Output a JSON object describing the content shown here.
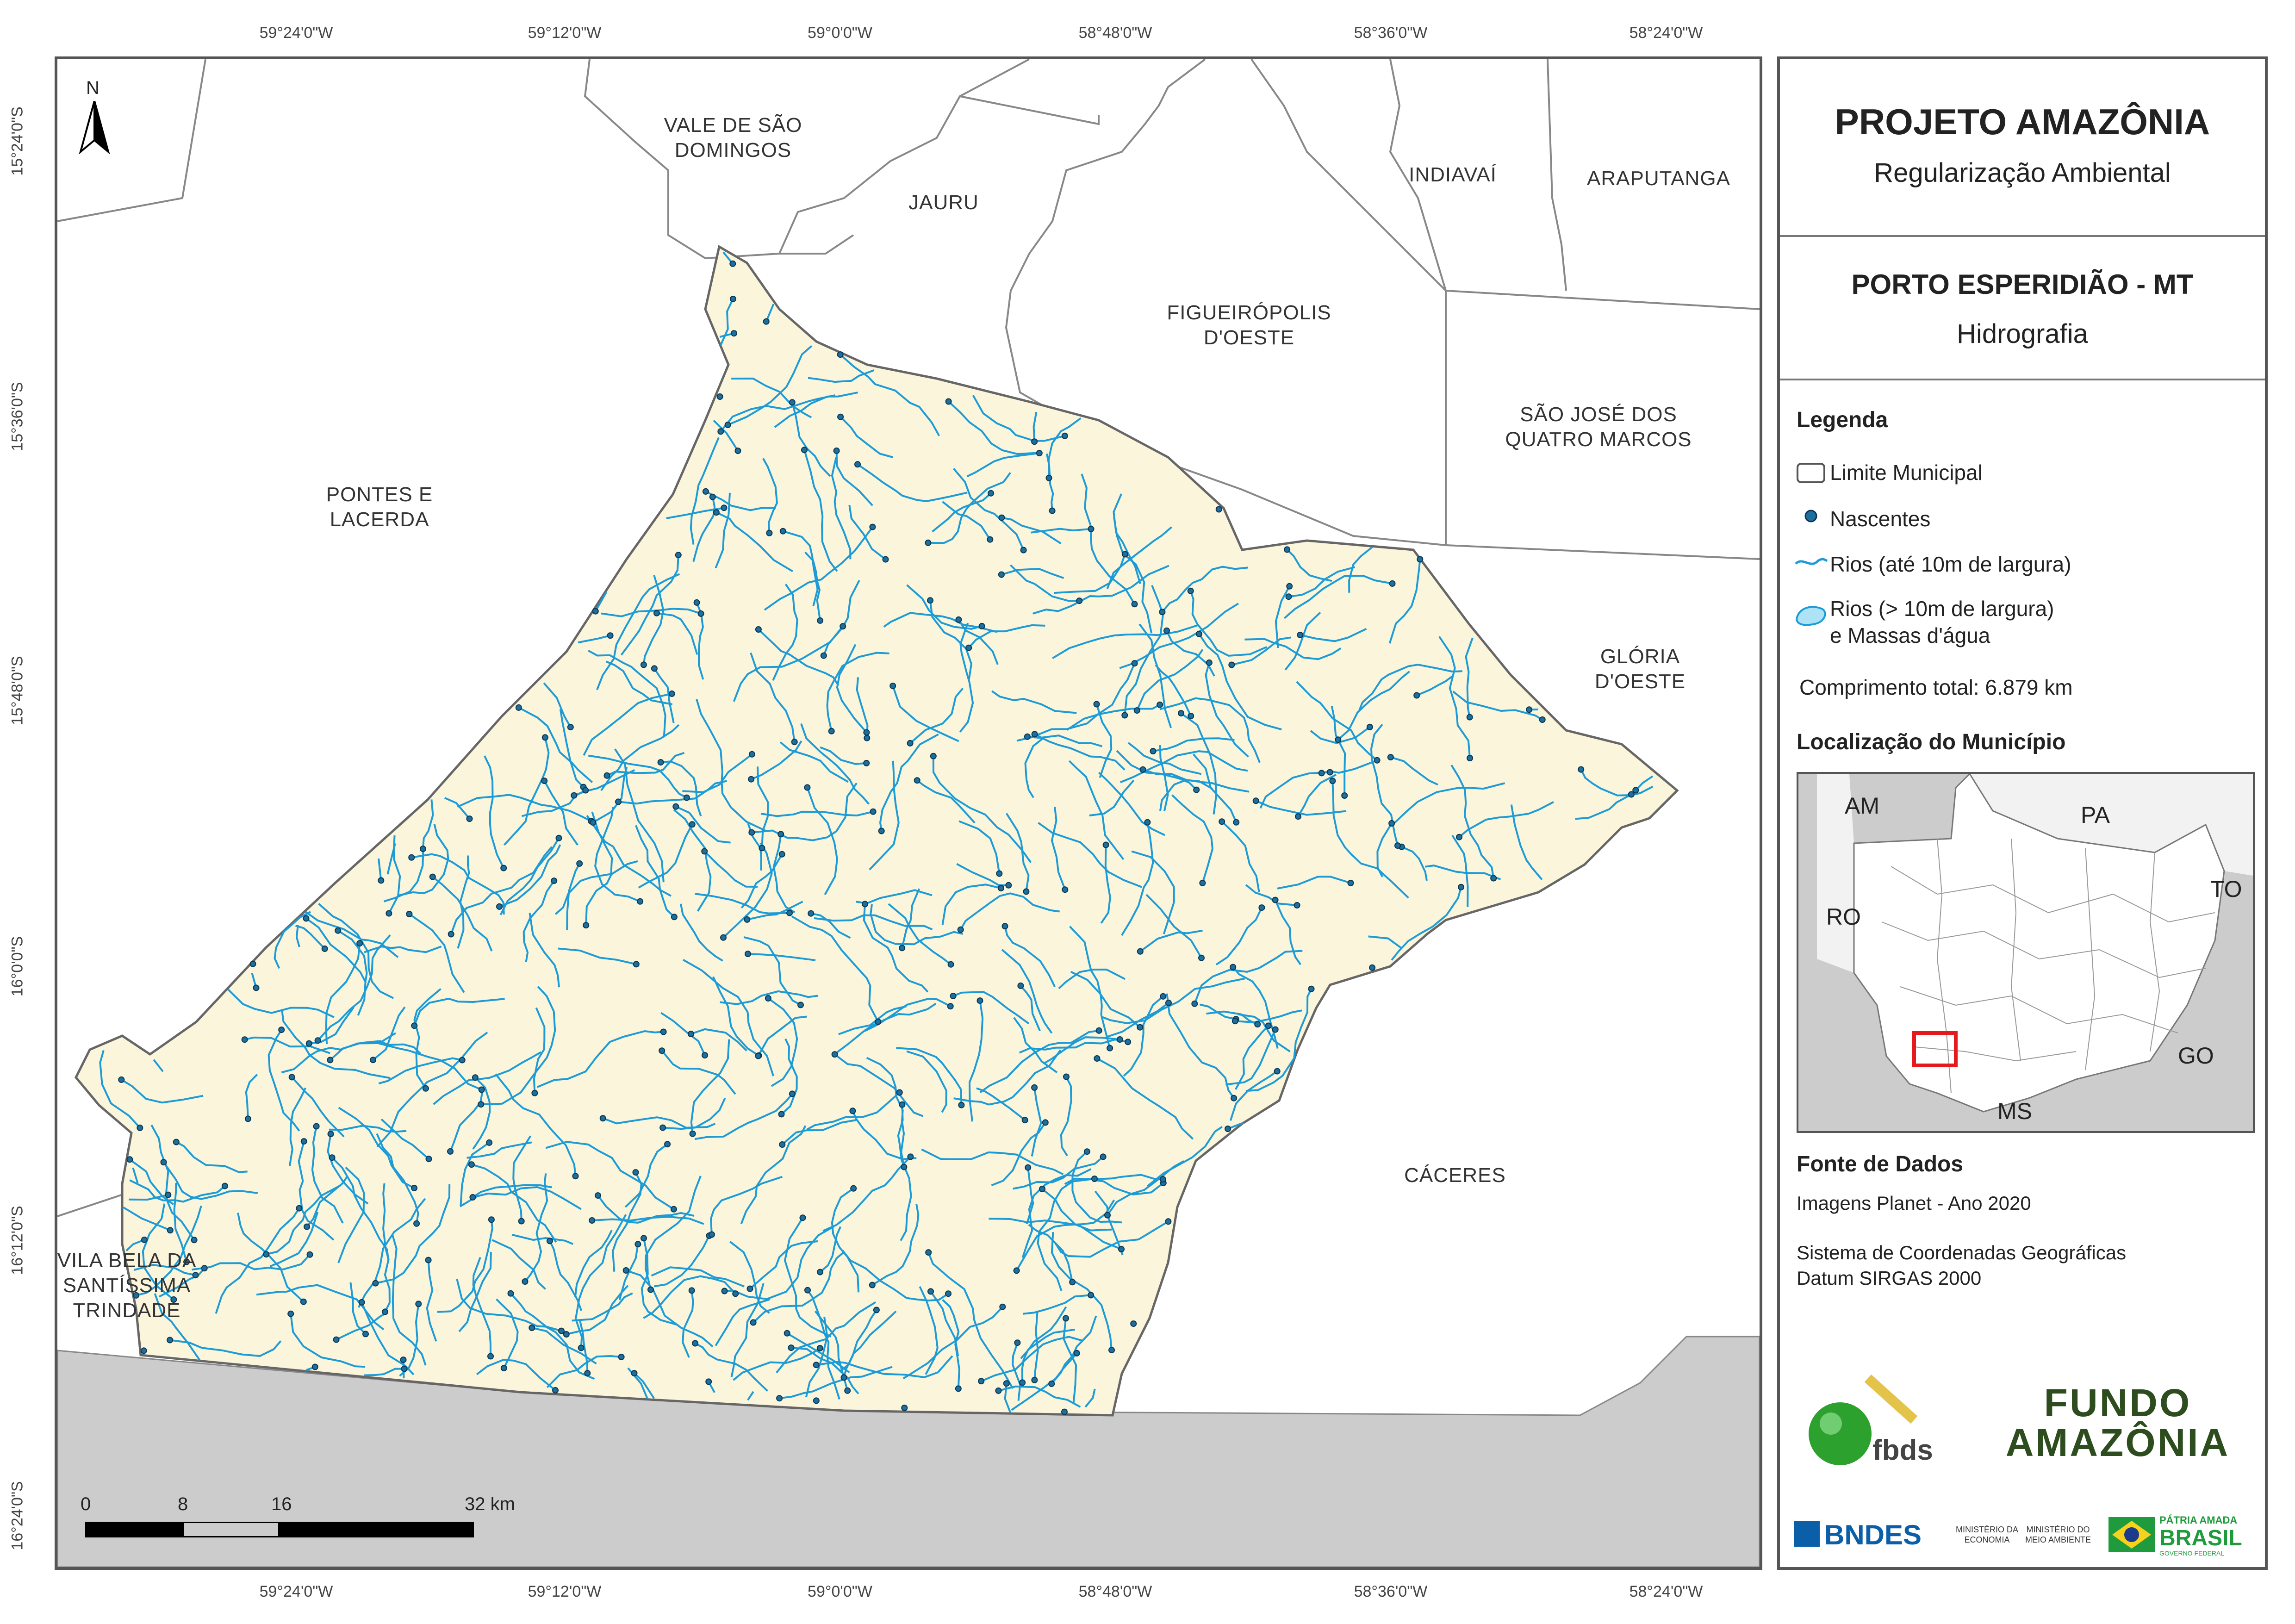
{
  "title": {
    "project": "PROJETO AMAZÔNIA",
    "subtitle": "Regularização Ambiental",
    "municipality": "PORTO ESPERIDIÃO - MT",
    "theme": "Hidrografia"
  },
  "coordinates": {
    "longitudes": [
      "59°24'0\"W",
      "59°12'0\"W",
      "59°0'0\"W",
      "58°48'0\"W",
      "58°36'0\"W",
      "58°24'0\"W"
    ],
    "latitudes": [
      "15°24'0\"S",
      "15°36'0\"S",
      "15°48'0\"S",
      "16°0'0\"S",
      "16°12'0\"S",
      "16°24'0\"S"
    ]
  },
  "municipalities": {
    "vale_de_sao_domingos": [
      "VALE DE SÃO",
      "DOMINGOS"
    ],
    "jauru": "JAURU",
    "indiavai": "INDIAVAÍ",
    "araputanga": "ARAPUTANGA",
    "figueiropolis": [
      "FIGUEIRÓPOLIS",
      "D'OESTE"
    ],
    "sao_jose": [
      "SÃO JOSÉ DOS",
      "QUATRO MARCOS"
    ],
    "pontes_e_lacerda": [
      "PONTES E",
      "LACERDA"
    ],
    "gloria": [
      "GLÓRIA",
      "D'OESTE"
    ],
    "caceres": "CÁCERES",
    "vila_bela": [
      "VILA BELA DA",
      "SANTÍSSIMA",
      "TRINDADE"
    ]
  },
  "north_arrow": "N",
  "scale_bar": {
    "labels": [
      "0",
      "8",
      "16",
      "32 km"
    ],
    "values_km": [
      0,
      8,
      16,
      32
    ]
  },
  "legend": {
    "heading": "Legenda",
    "items": [
      "Limite Municipal",
      "Nascentes",
      "Rios (até 10m de largura)",
      "Rios (> 10m de largura)",
      "e Massas d'água"
    ],
    "total_length": "Comprimento total: 6.879 km"
  },
  "location": {
    "heading": "Localização do Município",
    "states": [
      "AM",
      "PA",
      "RO",
      "TO",
      "GO",
      "MS"
    ]
  },
  "sources": {
    "heading": "Fonte de Dados",
    "imagery": "Imagens Planet - Ano 2020",
    "crs_line1": "Sistema de Coordenadas Geográficas",
    "crs_line2": "Datum SIRGAS 2000"
  },
  "logos": {
    "fbds": "fbds",
    "fundo_line1": "FUNDO",
    "fundo_line2": "AMAZÔNIA",
    "bndes": "BNDES",
    "min_economia": [
      "MINISTÉRIO DA",
      "ECONOMIA"
    ],
    "min_meio_ambiente": [
      "MINISTÉRIO DO",
      "MEIO AMBIENTE"
    ],
    "patria_amada": "PÁTRIA AMADA",
    "brasil": "BRASIL",
    "governo": "GOVERNO FEDERAL"
  },
  "colors": {
    "municipality_fill": "#fbf5dc",
    "river": "#1d9bd6",
    "spring": "#1d6f9e",
    "outside": "#ffffff",
    "bolivia": "#cccccc",
    "highlight": "#e41a1c"
  }
}
